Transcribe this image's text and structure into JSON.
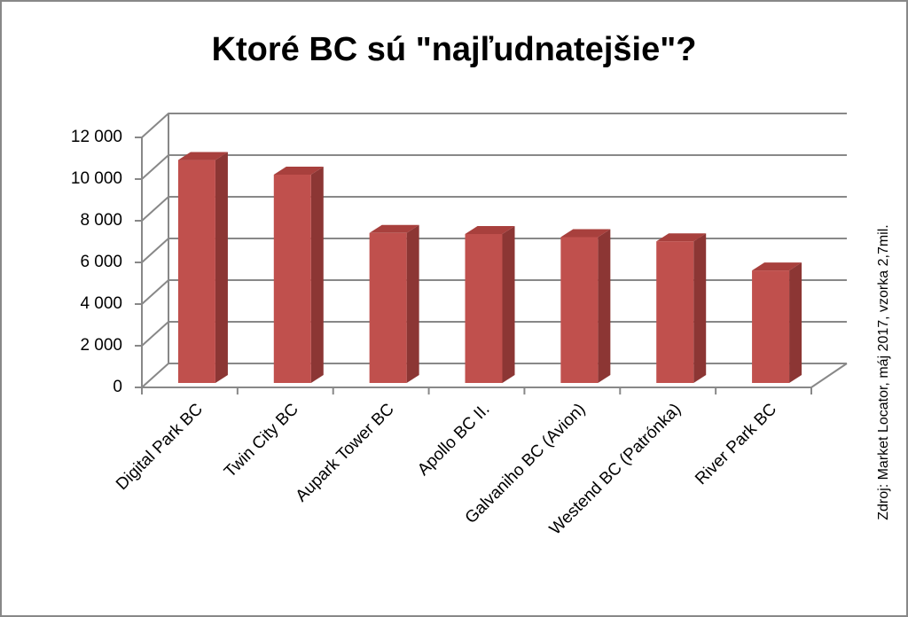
{
  "chart_data": {
    "type": "bar3d",
    "title": "Ktoré BC sú \"najľudnatejšie\"?",
    "source": "Zdroj: Market Locator, máj 2017, vzorka 2,7mil.",
    "categories": [
      "Digital Park BC",
      "Twin City BC",
      "Aupark  Tower BC",
      "Apollo BC II.",
      "Galvaniho BC (Avion)",
      "Westend BC (Patrónka)",
      "River Park BC"
    ],
    "values": [
      10700,
      10000,
      7200,
      7150,
      7000,
      6800,
      5400
    ],
    "color": "#c0504d",
    "ylim": [
      0,
      12000
    ],
    "yticks": [
      0,
      {
        "value": 2000,
        "label": "2 000"
      },
      {
        "value": 4000,
        "label": "4 000"
      },
      {
        "value": 6000,
        "label": "6 000"
      },
      {
        "value": 8000,
        "label": "8 000"
      },
      {
        "value": 10000,
        "label": "10 000"
      },
      {
        "value": 12000,
        "label": "12 000"
      }
    ],
    "grid": true
  }
}
